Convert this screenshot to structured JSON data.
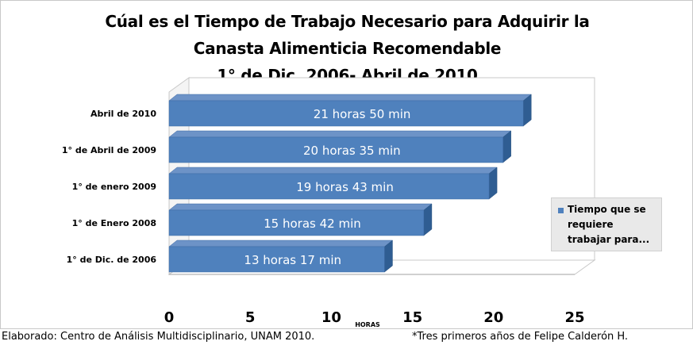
{
  "chart_data": {
    "type": "bar",
    "orientation": "horizontal",
    "title_lines": [
      "Cúal es el Tiempo de Trabajo Necesario para Adquirir la",
      "Canasta Alimenticia Recomendable",
      "1° de Dic. 2006- Abril de 2010"
    ],
    "categories": [
      "1° de Dic. de 2006",
      "1° de Enero 2008",
      "1° de enero 2009",
      "1° de Abril de 2009",
      "Abril de 2010"
    ],
    "series": [
      {
        "name": "Tiempo que se requiere trabajar para...",
        "values": [
          13.28,
          15.7,
          19.72,
          20.58,
          21.83
        ],
        "labels": [
          "13 horas 17 min",
          "15 horas 42 min",
          "19 horas 43 min",
          "20 horas 35  min",
          "21 horas 50 min"
        ],
        "color": "#4f81bd"
      }
    ],
    "xlabel": "HORAS",
    "xlim": [
      0,
      25
    ],
    "xticks": [
      "0",
      "5",
      "10",
      "15",
      "20",
      "25"
    ],
    "grid": false,
    "legend": "right"
  },
  "footer": {
    "left": "Elaborado: Centro de Análisis Multidisciplinario, UNAM 2010.",
    "right": "*Tres primeros años de Felipe Calderón H."
  }
}
